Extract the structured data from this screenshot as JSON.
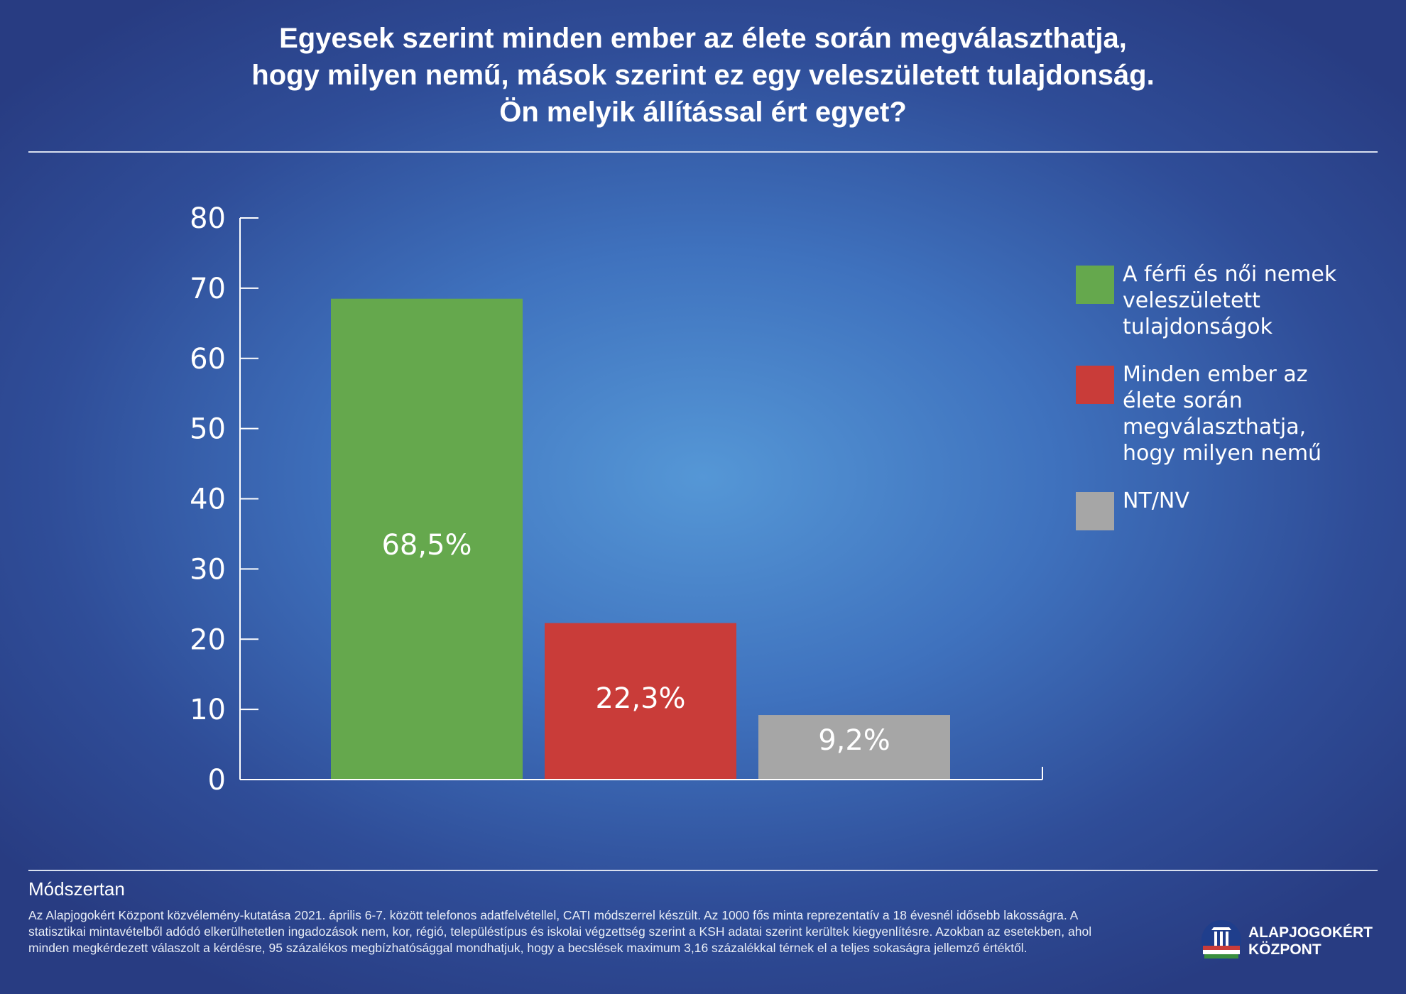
{
  "title_lines": [
    "Egyesek szerint minden ember az élete során megválaszthatja,",
    "hogy milyen nemű, mások szerint ez egy veleszületett tulajdonság.",
    "Ön melyik állítással ért egyet?"
  ],
  "chart_data": {
    "type": "bar",
    "categories": [
      "A férfi és női nemek veleszületett tulajdonságok",
      "Minden ember az élete során megválaszthatja, hogy milyen nemű",
      "NT/NV"
    ],
    "values": [
      68.5,
      22.3,
      9.2
    ],
    "data_labels": [
      "68,5%",
      "22,3%",
      "9,2%"
    ],
    "colors": [
      "#65a84d",
      "#c93c39",
      "#a6a6a6"
    ],
    "ylim": [
      0,
      80
    ],
    "yticks": [
      0,
      10,
      20,
      30,
      40,
      50,
      60,
      70,
      80
    ],
    "legend_position": "right",
    "grid": false
  },
  "legend": [
    {
      "label": "A férfi és női nemek veleszületett tulajdonságok",
      "color": "#65a84d"
    },
    {
      "label": "Minden ember az élete során megválaszthatja, hogy milyen nemű",
      "color": "#c93c39"
    },
    {
      "label": "NT/NV",
      "color": "#a6a6a6"
    }
  ],
  "methodology": {
    "heading": "Módszertan",
    "text": "Az Alapjogokért Központ közvélemény-kutatása 2021. április 6-7. között telefonos adatfelvétellel, CATI módszerrel készült. Az 1000 fős minta reprezentatív a 18 évesnél idősebb lakosságra. A statisztikai mintavételből adódó elkerülhetetlen ingadozások nem, kor, régió, településtípus és iskolai végzettség szerint a KSH adatai szerint kerültek kiegyenlítésre. Azokban az esetekben, ahol minden megkérdezett válaszolt a kérdésre, 95 százalékos megbízhatósággal mondhatjuk, hogy a becslések maximum 3,16 százalékkal térnek el a teljes sokaságra jellemző értéktől."
  },
  "logo": {
    "line1": "ALAPJOGOKÉRT",
    "line2": "KÖZPONT"
  }
}
